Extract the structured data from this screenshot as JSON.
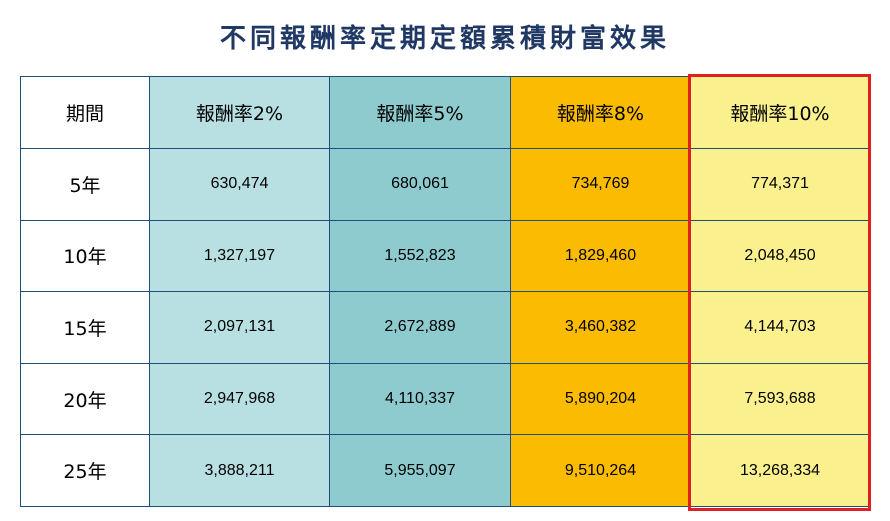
{
  "title": "不同報酬率定期定額累積財富效果",
  "table": {
    "corner_label": "期間",
    "columns": [
      "報酬率2%",
      "報酬率5%",
      "報酬率8%",
      "報酬率10%"
    ],
    "rows": [
      {
        "period": "5年",
        "values": [
          "630,474",
          "680,061",
          "734,769",
          "774,371"
        ]
      },
      {
        "period": "10年",
        "values": [
          "1,327,197",
          "1,552,823",
          "1,829,460",
          "2,048,450"
        ]
      },
      {
        "period": "15年",
        "values": [
          "2,097,131",
          "2,672,889",
          "3,460,382",
          "4,144,703"
        ]
      },
      {
        "period": "20年",
        "values": [
          "2,947,968",
          "4,110,337",
          "5,890,204",
          "7,593,688"
        ]
      },
      {
        "period": "25年",
        "values": [
          "3,888,211",
          "5,955,097",
          "9,510,264",
          "13,268,334"
        ]
      }
    ]
  },
  "colors": {
    "title": "#1f3864",
    "col_2pct": "#b8e0e2",
    "col_5pct": "#8ecbcf",
    "col_8pct": "#fbbb00",
    "col_10pct": "#faf08e",
    "highlight_border": "#e02020",
    "grid_border": "#1f4e79"
  }
}
